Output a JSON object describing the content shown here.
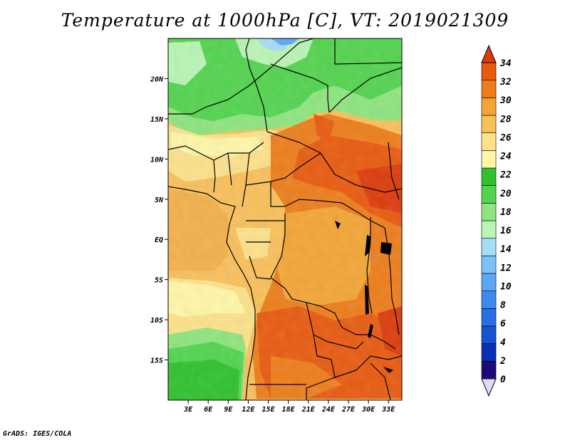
{
  "title": "Temperature at 1000hPa [C], VT: 2019021309",
  "credit": "GrADS: IGES/COLA",
  "map": {
    "lon_range": [
      0,
      35
    ],
    "lat_range": [
      -20,
      25
    ],
    "lon_ticks": [
      {
        "value": 3,
        "label": "3E"
      },
      {
        "value": 6,
        "label": "6E"
      },
      {
        "value": 9,
        "label": "9E"
      },
      {
        "value": 12,
        "label": "12E"
      },
      {
        "value": 15,
        "label": "15E"
      },
      {
        "value": 18,
        "label": "18E"
      },
      {
        "value": 21,
        "label": "21E"
      },
      {
        "value": 24,
        "label": "24E"
      },
      {
        "value": 27,
        "label": "27E"
      },
      {
        "value": 30,
        "label": "30E"
      },
      {
        "value": 33,
        "label": "33E"
      }
    ],
    "lat_ticks": [
      {
        "value": 20,
        "label": "20N"
      },
      {
        "value": 15,
        "label": "15N"
      },
      {
        "value": 10,
        "label": "10N"
      },
      {
        "value": 5,
        "label": "5N"
      },
      {
        "value": 0,
        "label": "EQ"
      },
      {
        "value": -5,
        "label": "5S"
      },
      {
        "value": -10,
        "label": "10S"
      },
      {
        "value": -15,
        "label": "15S"
      }
    ]
  },
  "colorbar": {
    "levels": [
      "0",
      "2",
      "4",
      "6",
      "8",
      "10",
      "12",
      "14",
      "16",
      "18",
      "20",
      "22",
      "24",
      "26",
      "28",
      "30",
      "32",
      "34"
    ],
    "colors": [
      "#dcdcff",
      "#1c0a7a",
      "#0a2fb5",
      "#1553cf",
      "#2a6ee6",
      "#3c8af0",
      "#5aa8f5",
      "#7cc0fa",
      "#a6dcf8",
      "#b9f5b4",
      "#8ee57e",
      "#52d44e",
      "#2ec22e",
      "#fff7a8",
      "#fde28a",
      "#f9c05a",
      "#f3a534",
      "#ee7d19",
      "#e85a0e",
      "#dd3a0a"
    ]
  }
}
